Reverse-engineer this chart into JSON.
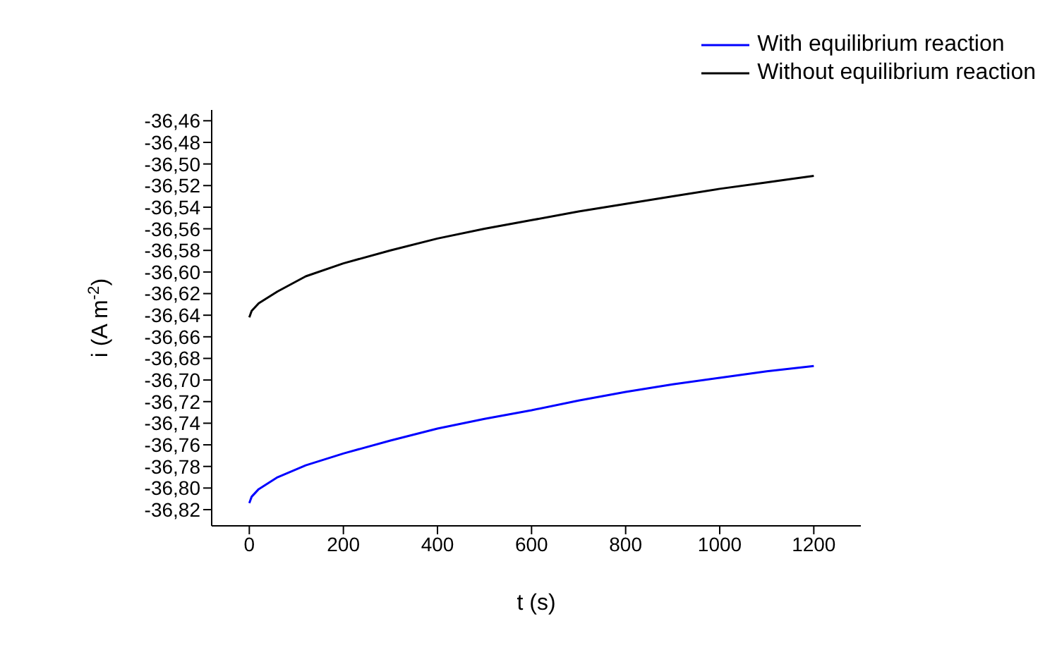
{
  "chart_data": {
    "type": "line",
    "xlabel": "t (s)",
    "ylabel": "i (A m$^{-2}$)",
    "x": [
      0,
      5,
      20,
      60,
      120,
      200,
      300,
      400,
      500,
      600,
      700,
      800,
      900,
      1000,
      1100,
      1200
    ],
    "series": [
      {
        "name": "With equilibrium reaction",
        "color": "#0000ff",
        "values": [
          -36.814,
          -36.808,
          -36.801,
          -36.79,
          -36.779,
          -36.768,
          -36.756,
          -36.745,
          -36.736,
          -36.728,
          -36.719,
          -36.711,
          -36.704,
          -36.698,
          -36.692,
          -36.687
        ]
      },
      {
        "name": "Without equilibrium reaction",
        "color": "#000000",
        "values": [
          -36.642,
          -36.636,
          -36.629,
          -36.618,
          -36.604,
          -36.592,
          -36.58,
          -36.569,
          -36.56,
          -36.552,
          -36.544,
          -36.537,
          -36.53,
          -36.523,
          -36.517,
          -36.511
        ]
      }
    ],
    "xlim": [
      -80,
      1300
    ],
    "xticks": [
      0,
      200,
      400,
      600,
      800,
      1000,
      1200
    ],
    "ylim": [
      -36.835,
      -36.45
    ],
    "yticks": [
      {
        "value": -36.82,
        "label": "-36,82"
      },
      {
        "value": -36.8,
        "label": "-36,80"
      },
      {
        "value": -36.78,
        "label": "-36,78"
      },
      {
        "value": -36.76,
        "label": "-36,76"
      },
      {
        "value": -36.74,
        "label": "-36,74"
      },
      {
        "value": -36.72,
        "label": "-36,72"
      },
      {
        "value": -36.7,
        "label": "-36,70"
      },
      {
        "value": -36.68,
        "label": "-36,68"
      },
      {
        "value": -36.66,
        "label": "-36,66"
      },
      {
        "value": -36.64,
        "label": "-36,64"
      },
      {
        "value": -36.62,
        "label": "-36,62"
      },
      {
        "value": -36.6,
        "label": "-36,60"
      },
      {
        "value": -36.58,
        "label": "-36,58"
      },
      {
        "value": -36.56,
        "label": "-36,56"
      },
      {
        "value": -36.54,
        "label": "-36,54"
      },
      {
        "value": -36.52,
        "label": "-36,52"
      },
      {
        "value": -36.5,
        "label": "-36,50"
      },
      {
        "value": -36.48,
        "label": "-36,48"
      },
      {
        "value": -36.46,
        "label": "-36,46"
      }
    ],
    "grid": false,
    "legend": "top right",
    "marker": "none",
    "line_style": "solid"
  }
}
